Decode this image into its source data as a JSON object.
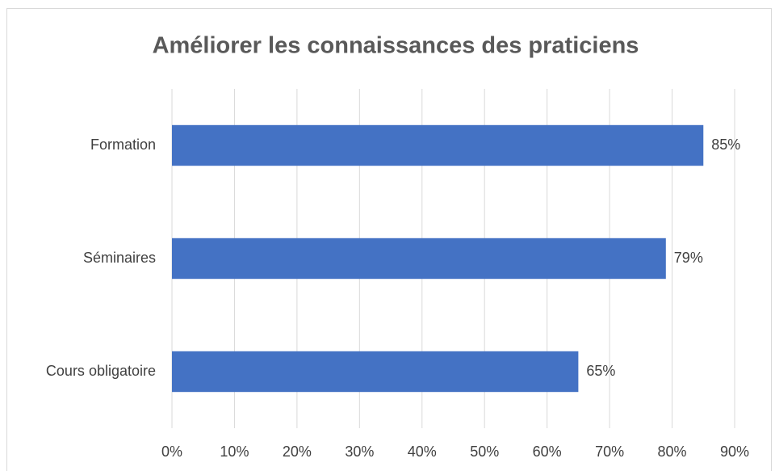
{
  "chart_data": {
    "type": "bar",
    "orientation": "horizontal",
    "title": "Améliorer les connaissances des praticiens",
    "categories": [
      "Formation",
      "Séminaires",
      "Cours obligatoire"
    ],
    "values": [
      85,
      79,
      65
    ],
    "value_labels": [
      "85%",
      "79%",
      "65%"
    ],
    "color": "#4472c4",
    "xlim": [
      0,
      90
    ],
    "xticks": [
      {
        "value": 0,
        "label": "0%"
      },
      {
        "value": 10,
        "label": "10%"
      },
      {
        "value": 20,
        "label": "20%"
      },
      {
        "value": 30,
        "label": "30%"
      },
      {
        "value": 40,
        "label": "40%"
      },
      {
        "value": 50,
        "label": "50%"
      },
      {
        "value": 60,
        "label": "60%"
      },
      {
        "value": 70,
        "label": "70%"
      },
      {
        "value": 80,
        "label": "80%"
      },
      {
        "value": 90,
        "label": "90%"
      }
    ],
    "grid": true
  }
}
